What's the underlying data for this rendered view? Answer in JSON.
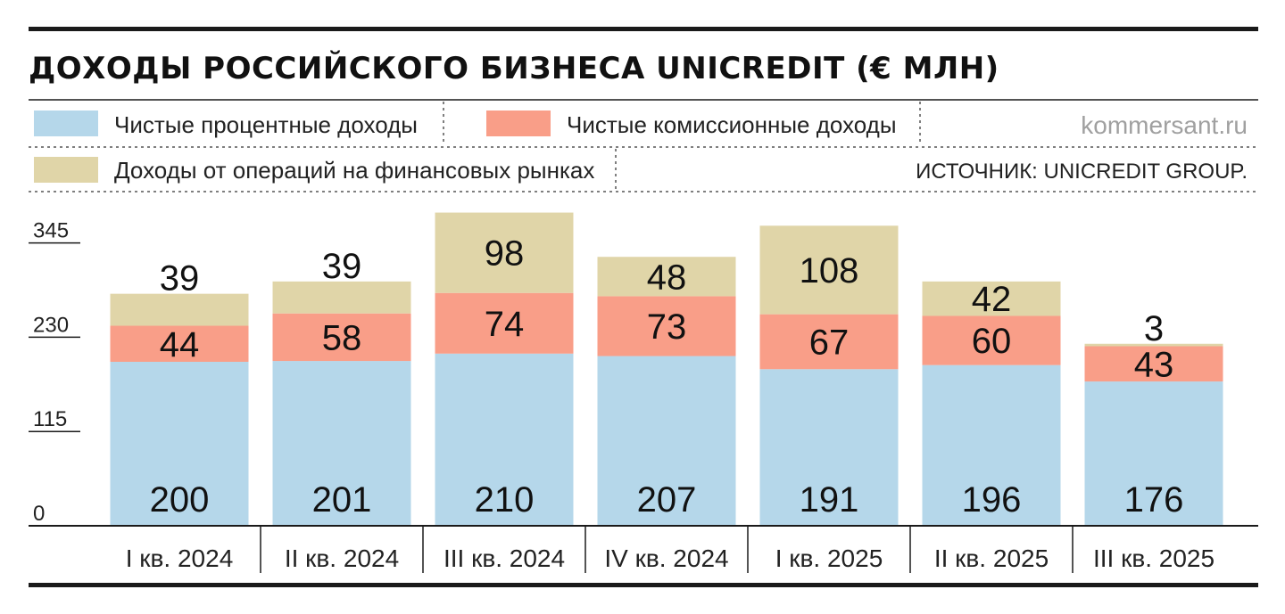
{
  "header": {
    "title": "ДОХОДЫ РОССИЙСКОГО БИЗНЕСА UNICREDIT (€ МЛН)",
    "brand": "kommersant.ru",
    "source": "ИСТОЧНИК: UNICREDIT GROUP."
  },
  "colors": {
    "net_interest": "#b5d7ea",
    "net_commission": "#f99e88",
    "markets": "#e0d5a8",
    "rule": "#1a1a1a"
  },
  "chart_data": {
    "type": "bar",
    "stacked": true,
    "title": "ДОХОДЫ РОССИЙСКОГО БИЗНЕСА UNICREDIT (€ МЛН)",
    "categories": [
      "I кв. 2024",
      "II кв. 2024",
      "III кв. 2024",
      "IV кв. 2024",
      "I кв. 2025",
      "II кв. 2025",
      "III кв. 2025"
    ],
    "series": [
      {
        "name": "Чистые процентные доходы",
        "color": "#b5d7ea",
        "values": [
          200,
          201,
          210,
          207,
          191,
          196,
          176
        ]
      },
      {
        "name": "Чистые комиссионные доходы",
        "color": "#f99e88",
        "values": [
          44,
          58,
          74,
          73,
          67,
          60,
          43
        ]
      },
      {
        "name": "Доходы от операций на финансовых рынках",
        "color": "#e0d5a8",
        "values": [
          39,
          39,
          98,
          48,
          108,
          42,
          3
        ]
      }
    ],
    "yticks": [
      0,
      115,
      230,
      345
    ],
    "ylim": [
      0,
      385
    ],
    "xlabel": "",
    "ylabel": "",
    "grid": false,
    "legend": "top"
  }
}
